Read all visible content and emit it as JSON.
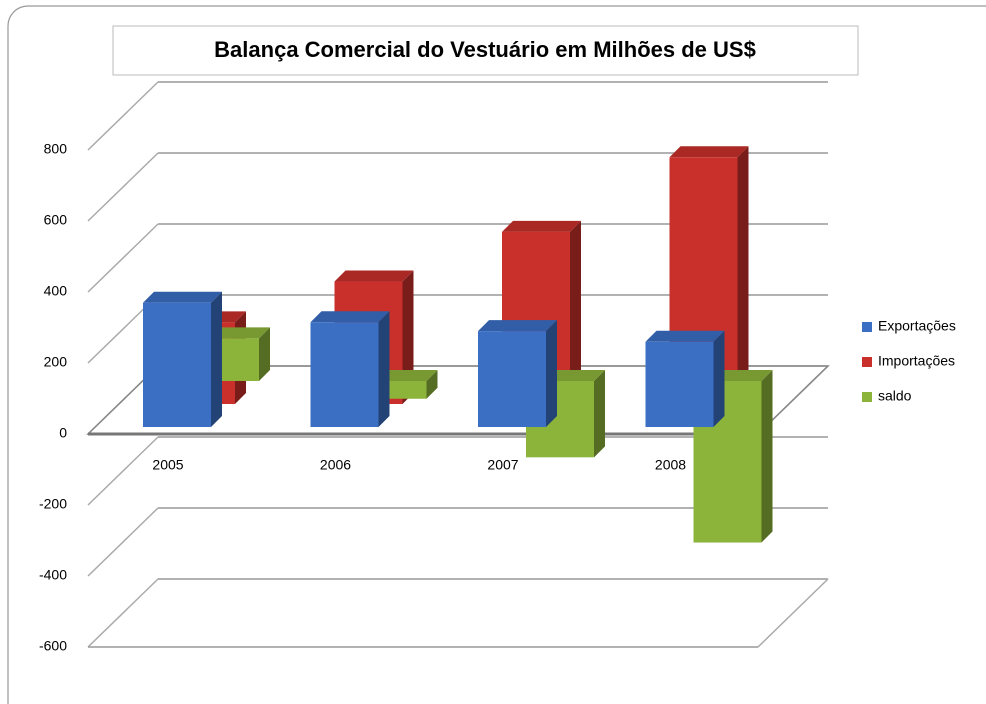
{
  "chart_data": {
    "type": "bar",
    "title": "Balança Comercial do Vestuário em Milhões de US$",
    "categories": [
      "2005",
      "2006",
      "2007",
      "2008"
    ],
    "series": [
      {
        "name": "Exportações",
        "color": "#3a6fc4",
        "values": [
          350,
          295,
          270,
          240
        ]
      },
      {
        "name": "Importações",
        "color": "#c9302c",
        "values": [
          230,
          345,
          485,
          695
        ]
      },
      {
        "name": "saldo",
        "color": "#8db43a",
        "values": [
          120,
          -50,
          -215,
          -455
        ]
      }
    ],
    "ylim": [
      -600,
      800
    ],
    "yticks": [
      -600,
      -400,
      -200,
      0,
      200,
      400,
      600,
      800
    ],
    "grid": true,
    "legend": "right"
  }
}
